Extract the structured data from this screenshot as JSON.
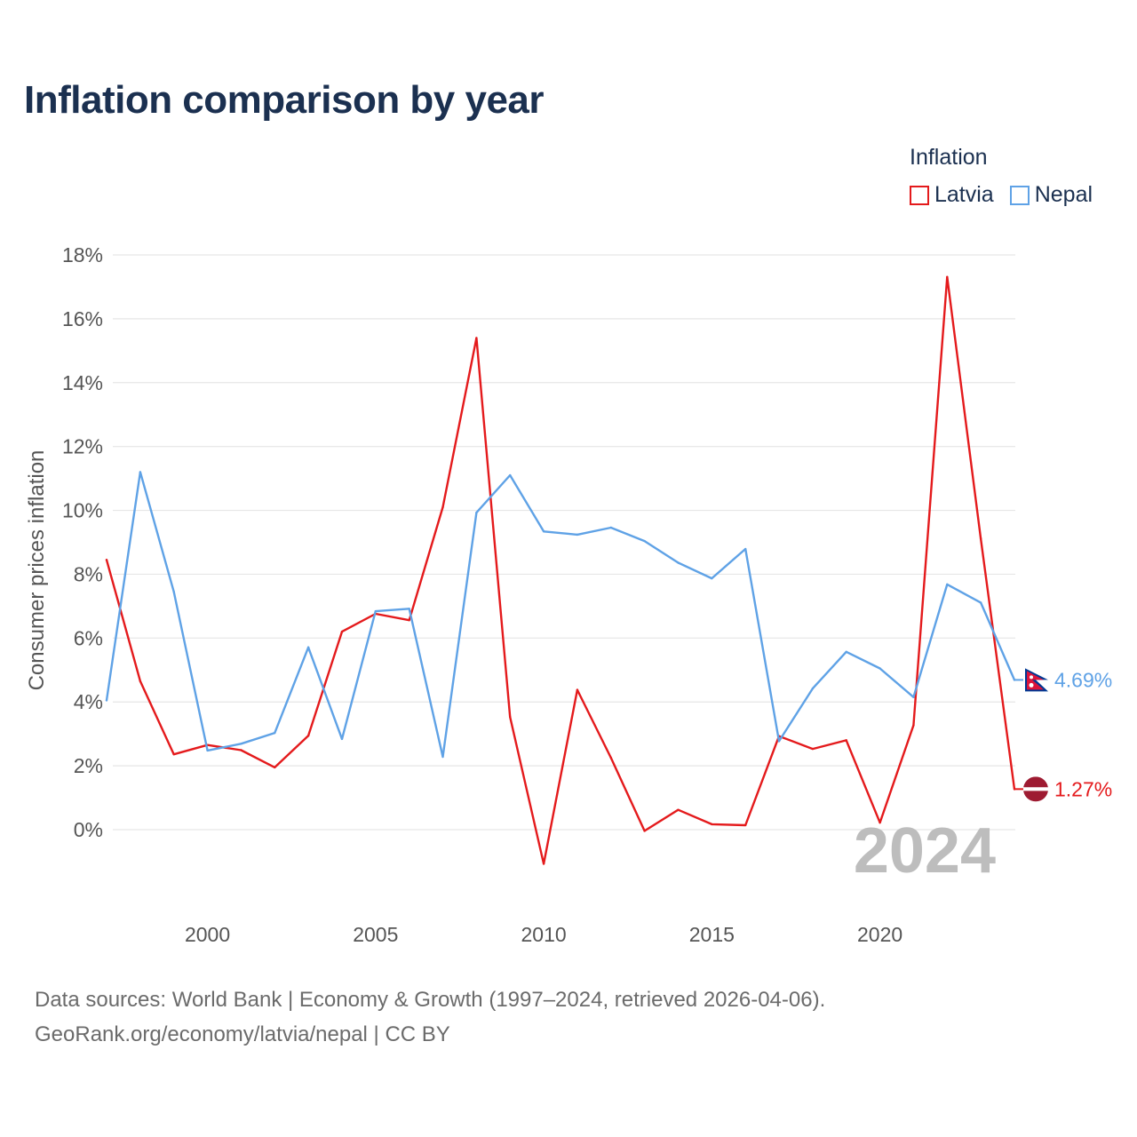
{
  "title": "Inflation comparison by year",
  "legend": {
    "title": "Inflation",
    "items": [
      {
        "label": "Latvia",
        "color": "#e41a1c"
      },
      {
        "label": "Nepal",
        "color": "#5fa2e6"
      }
    ]
  },
  "footer": {
    "line1": "Data sources: World Bank | Economy & Growth (1997–2024, retrieved 2026-04-06).",
    "line2": "GeoRank.org/economy/latvia/nepal | CC BY"
  },
  "chart_data": {
    "type": "line",
    "title": "Inflation comparison by year",
    "xlabel": "",
    "ylabel": "Consumer prices inflation",
    "xlim": [
      1997,
      2024
    ],
    "ylim": [
      -2,
      18
    ],
    "yticks": [
      0,
      2,
      4,
      6,
      8,
      10,
      12,
      14,
      16,
      18
    ],
    "ytick_labels": [
      "0%",
      "2%",
      "4%",
      "6%",
      "8%",
      "10%",
      "12%",
      "14%",
      "16%",
      "18%"
    ],
    "xticks": [
      2000,
      2005,
      2010,
      2015,
      2020
    ],
    "xtick_labels": [
      "2000",
      "2005",
      "2010",
      "2015",
      "2020"
    ],
    "grid": true,
    "year_watermark": "2024",
    "x": [
      1997,
      1998,
      1999,
      2000,
      2001,
      2002,
      2003,
      2004,
      2005,
      2006,
      2007,
      2008,
      2009,
      2010,
      2011,
      2012,
      2013,
      2014,
      2015,
      2016,
      2017,
      2018,
      2019,
      2020,
      2021,
      2022,
      2023,
      2024
    ],
    "series": [
      {
        "name": "Latvia",
        "color": "#e41a1c",
        "end_label": "1.27%",
        "values": [
          8.45,
          4.65,
          2.36,
          2.65,
          2.49,
          1.95,
          2.94,
          6.2,
          6.76,
          6.56,
          10.1,
          15.4,
          3.53,
          -1.07,
          4.38,
          2.25,
          -0.04,
          0.62,
          0.17,
          0.14,
          2.93,
          2.53,
          2.8,
          0.22,
          3.27,
          17.31,
          9.12,
          1.27
        ]
      },
      {
        "name": "Nepal",
        "color": "#5fa2e6",
        "end_label": "4.69%",
        "values": [
          4.05,
          11.2,
          7.45,
          2.48,
          2.69,
          3.03,
          5.71,
          2.84,
          6.84,
          6.92,
          2.28,
          9.93,
          11.1,
          9.34,
          9.24,
          9.46,
          9.04,
          8.36,
          7.87,
          8.79,
          2.77,
          4.42,
          5.57,
          5.05,
          4.15,
          7.68,
          7.11,
          4.69
        ]
      }
    ]
  }
}
